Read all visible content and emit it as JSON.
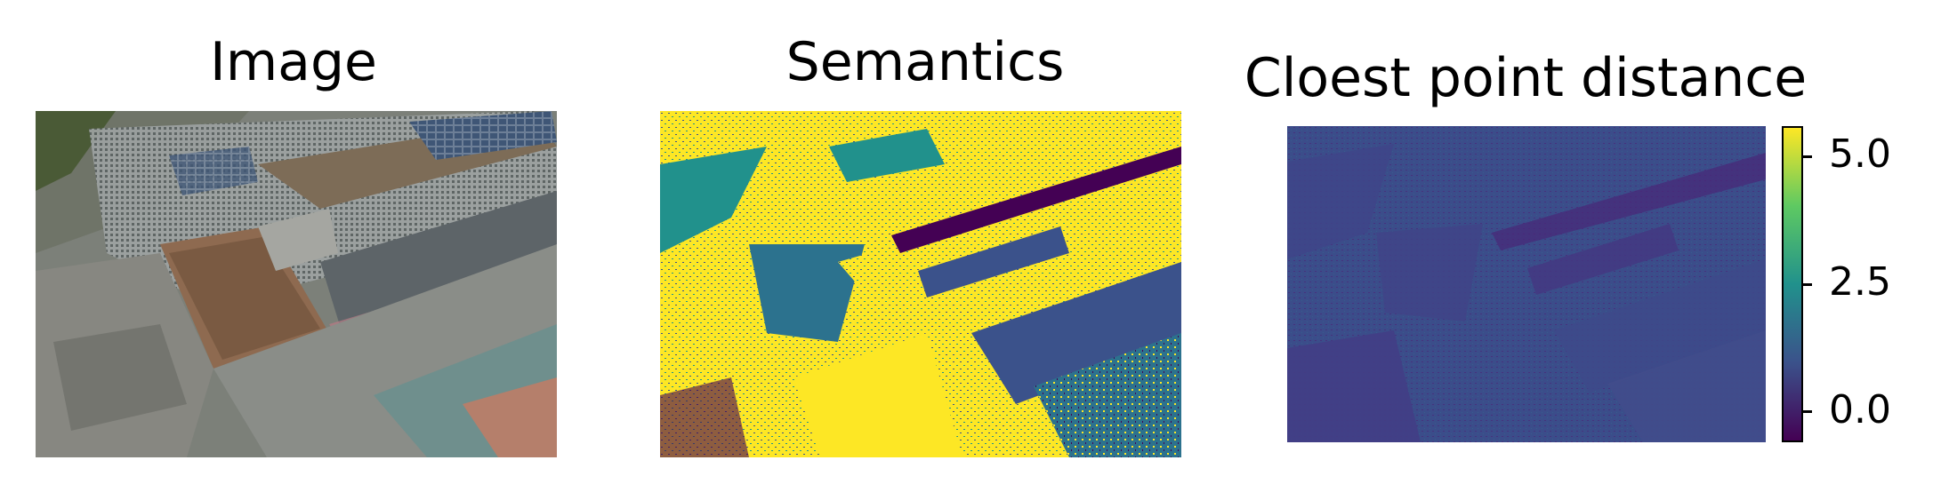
{
  "panels": [
    {
      "title": "Image"
    },
    {
      "title": "Semantics"
    },
    {
      "title": "Cloest point distance"
    }
  ],
  "colorbar": {
    "colormap": "viridis",
    "ticks": [
      "5.0",
      "2.5",
      "0.0"
    ],
    "tick_values": [
      5.0,
      2.5,
      0.0
    ],
    "range": [
      -0.6,
      5.6
    ]
  },
  "colors": {
    "viridis_dark": "#440154",
    "viridis_blue": "#3b528b",
    "viridis_teal": "#21918c",
    "viridis_green": "#5ec962",
    "viridis_yellow": "#fde725"
  }
}
